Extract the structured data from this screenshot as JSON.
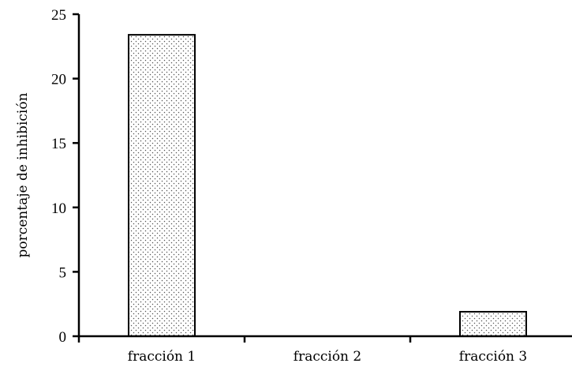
{
  "chart_data": {
    "type": "bar",
    "title": "",
    "xlabel": "",
    "ylabel": "porcentaje de inhibición",
    "categories": [
      "fracción 1",
      "fracción 2",
      "fracción 3"
    ],
    "values": [
      23.4,
      0,
      1.9
    ],
    "ylim": [
      0,
      25
    ],
    "yticks": [
      "0",
      "5",
      "10",
      "15",
      "20",
      "25"
    ],
    "grid": false,
    "legend": "none",
    "bar_fill": "dotted-stipple",
    "colors": {
      "bar_background": "#ffffff",
      "bar_dots": "#555555",
      "axis": "#000000"
    }
  }
}
